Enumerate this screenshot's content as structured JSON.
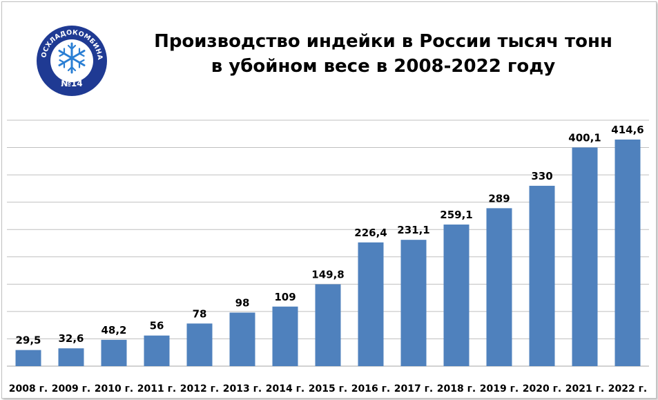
{
  "logo": {
    "ring_text": "МОСХЛАДОКОМБИНАТ",
    "number_text": "№14",
    "icon": "snowflake-icon",
    "ring_color": "#1f3a93",
    "center_color": "#ffffff",
    "snowflake_color": "#2a7fd4"
  },
  "title": {
    "line1": "Производство индейки в России тысяч тонн",
    "line2": "в убойном весе в 2008-2022 году"
  },
  "chart_data": {
    "type": "bar",
    "title": "Производство индейки в России тысяч тонн в убойном весе в 2008-2022 году",
    "categories": [
      "2008 г.",
      "2009 г.",
      "2010 г.",
      "2011 г.",
      "2012 г.",
      "2013 г.",
      "2014 г.",
      "2015 г.",
      "2016 г.",
      "2017 г.",
      "2018 г.",
      "2019 г.",
      "2020 г.",
      "2021 г.",
      "2022 г."
    ],
    "values": [
      29.5,
      32.6,
      48.2,
      56,
      78,
      98,
      109,
      149.8,
      226.4,
      231.1,
      259.1,
      289,
      330,
      400.1,
      414.6
    ],
    "value_labels": [
      "29,5",
      "32,6",
      "48,2",
      "56",
      "78",
      "98",
      "109",
      "149,8",
      "226,4",
      "231,1",
      "259,1",
      "289",
      "330",
      "400,1",
      "414,6"
    ],
    "ylim": [
      0,
      450
    ],
    "gridlines": true,
    "bar_color": "#4f81bd",
    "grid_color": "#bfbfbf"
  }
}
